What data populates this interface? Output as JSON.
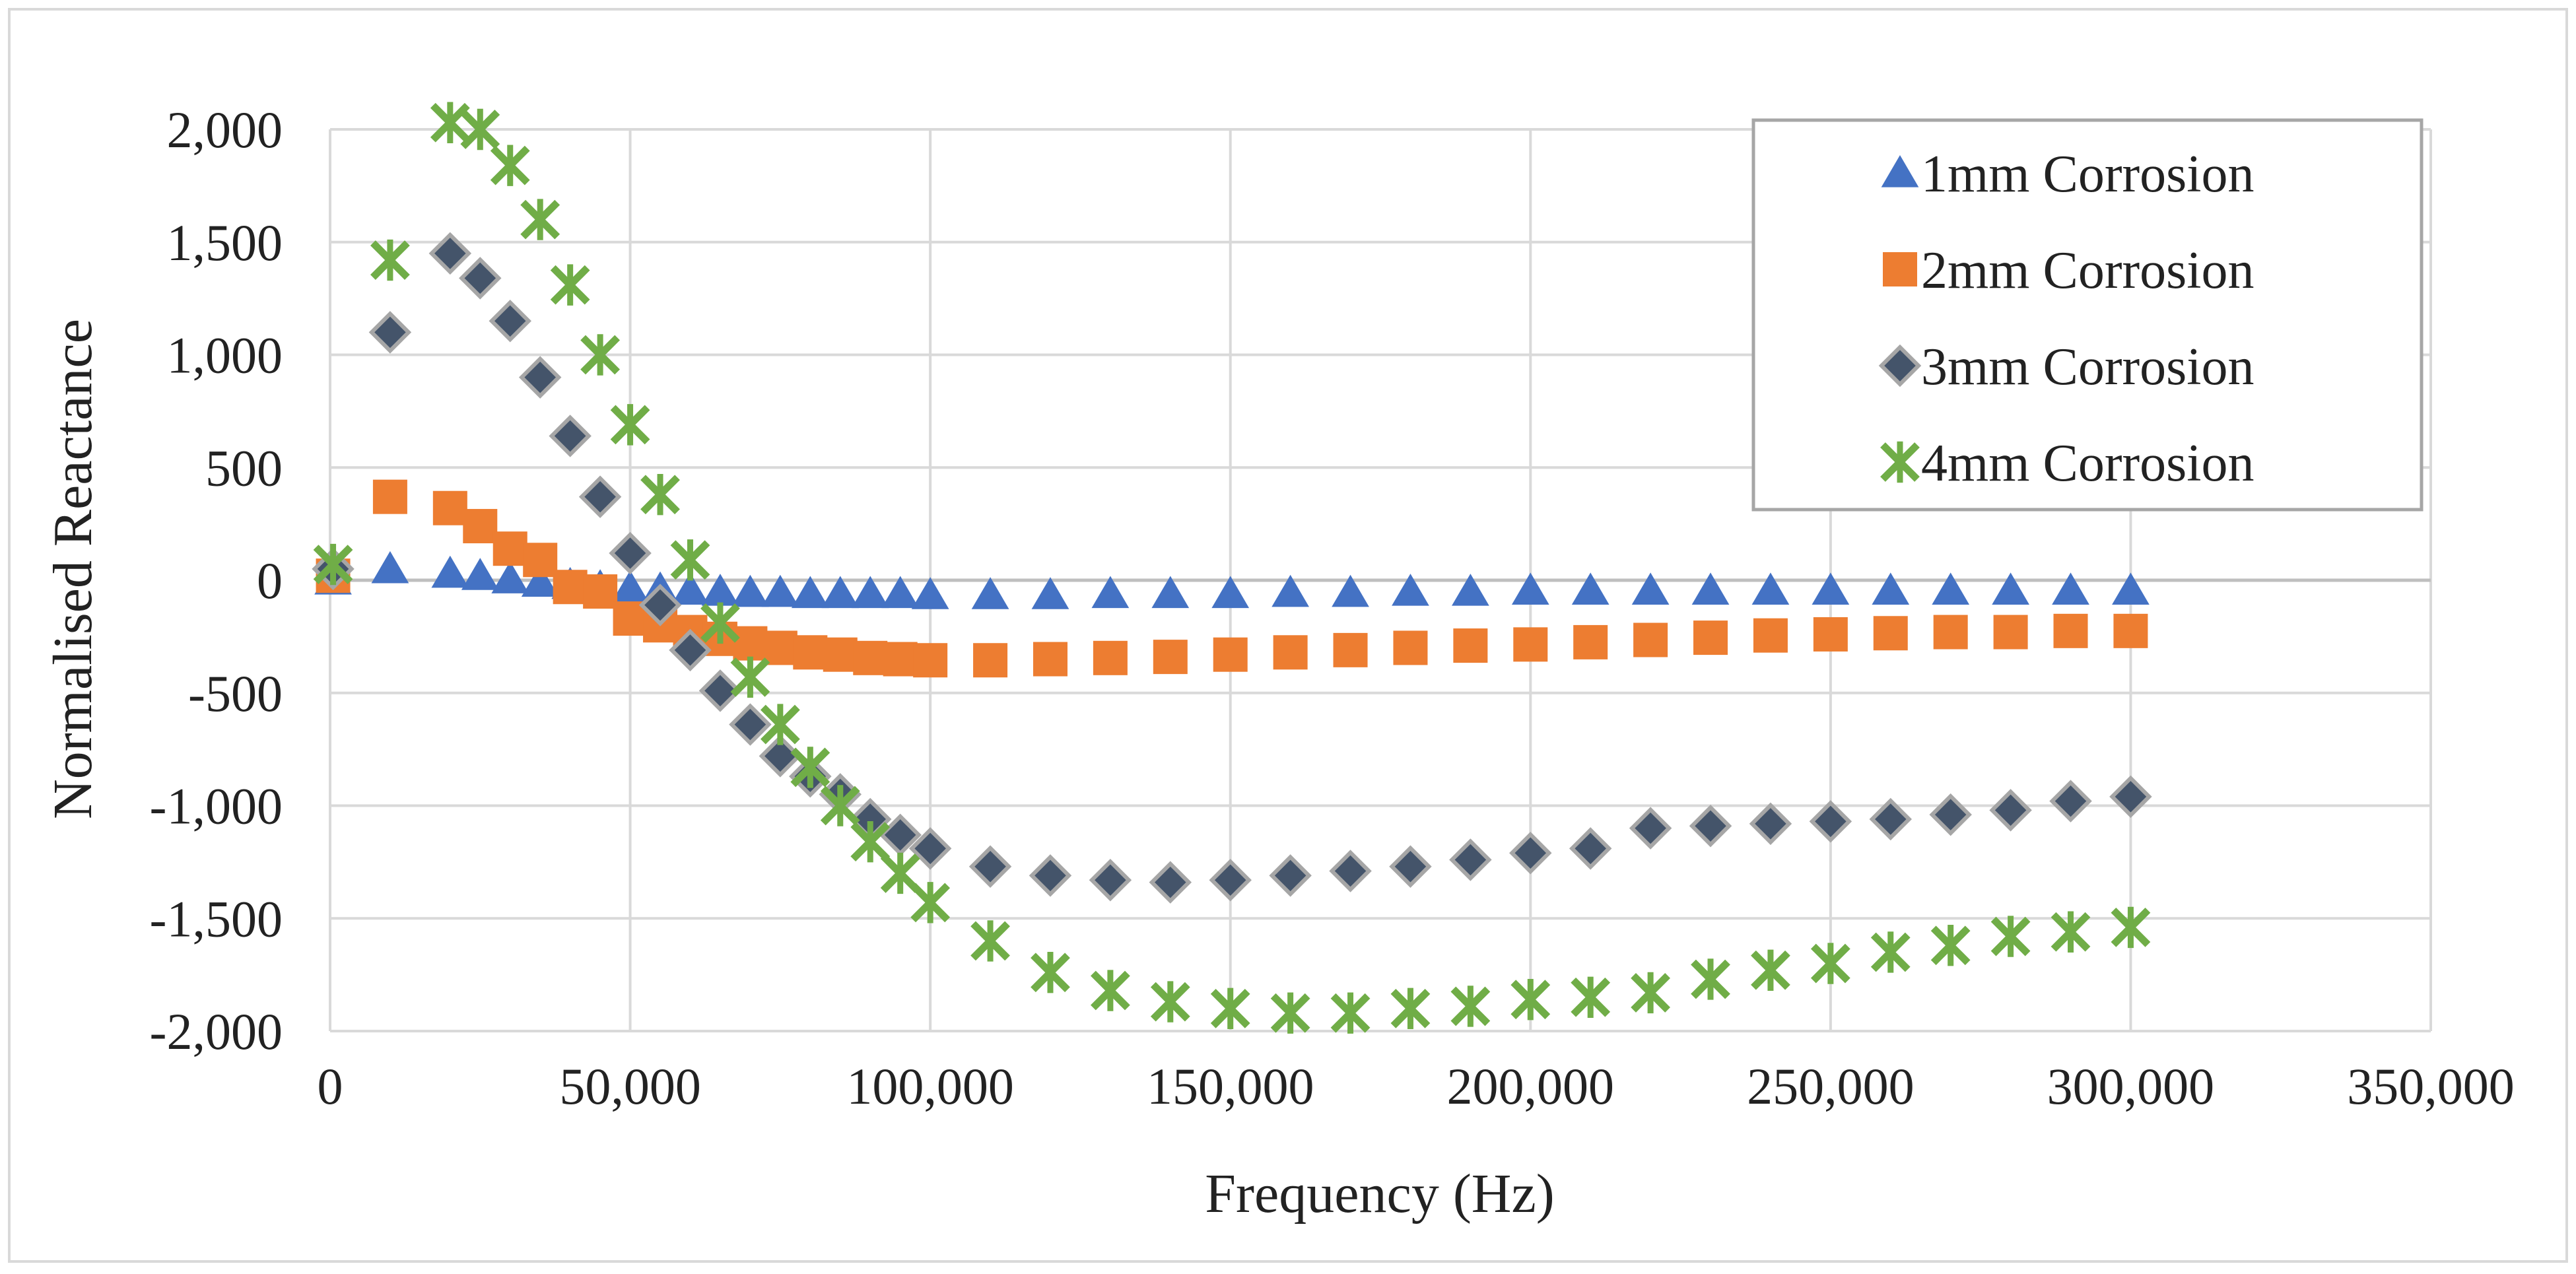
{
  "chart_data": {
    "type": "scatter",
    "title": "",
    "xlabel": "Frequency (Hz)",
    "ylabel": "Normalised Reactance",
    "xlim": [
      0,
      350000
    ],
    "ylim": [
      -2000,
      2000
    ],
    "x_ticks": [
      0,
      50000,
      100000,
      150000,
      200000,
      250000,
      300000,
      350000
    ],
    "y_ticks": [
      -2000,
      -1500,
      -1000,
      -500,
      0,
      500,
      1000,
      1500,
      2000
    ],
    "x_tick_labels": [
      "0",
      "50,000",
      "100,000",
      "150,000",
      "200,000",
      "250,000",
      "300,000",
      "350,000"
    ],
    "y_tick_labels": [
      "-2,000",
      "-1,500",
      "-1,000",
      "-500",
      "0",
      "500",
      "1,000",
      "1,500",
      "2,000"
    ],
    "grid": true,
    "legend_position": "top-right",
    "series": [
      {
        "name": "1mm Corrosion",
        "marker": "triangle",
        "color": "#4472C4",
        "x": [
          500,
          10000,
          20000,
          25000,
          30000,
          35000,
          40000,
          45000,
          50000,
          55000,
          60000,
          65000,
          70000,
          75000,
          80000,
          85000,
          90000,
          95000,
          100000,
          110000,
          120000,
          130000,
          140000,
          150000,
          160000,
          170000,
          180000,
          190000,
          200000,
          210000,
          220000,
          230000,
          240000,
          250000,
          260000,
          270000,
          280000,
          290000,
          300000
        ],
        "y": [
          0,
          50,
          30,
          20,
          5,
          -10,
          -20,
          -30,
          -35,
          -40,
          -45,
          -50,
          -55,
          -55,
          -60,
          -60,
          -60,
          -60,
          -65,
          -65,
          -65,
          -60,
          -60,
          -60,
          -55,
          -55,
          -50,
          -50,
          -45,
          -45,
          -45,
          -45,
          -45,
          -45,
          -45,
          -45,
          -45,
          -45,
          -45
        ]
      },
      {
        "name": "2mm Corrosion",
        "marker": "square",
        "color": "#ED7D31",
        "x": [
          500,
          10000,
          20000,
          25000,
          30000,
          35000,
          40000,
          45000,
          50000,
          55000,
          60000,
          65000,
          70000,
          75000,
          80000,
          85000,
          90000,
          95000,
          100000,
          110000,
          120000,
          130000,
          140000,
          150000,
          160000,
          170000,
          180000,
          190000,
          200000,
          210000,
          220000,
          230000,
          240000,
          250000,
          260000,
          270000,
          280000,
          290000,
          300000
        ],
        "y": [
          20,
          370,
          320,
          240,
          140,
          90,
          -30,
          -50,
          -170,
          -200,
          -230,
          -260,
          -280,
          -300,
          -320,
          -330,
          -345,
          -350,
          -355,
          -355,
          -350,
          -345,
          -340,
          -330,
          -320,
          -310,
          -300,
          -290,
          -285,
          -275,
          -265,
          -255,
          -245,
          -240,
          -235,
          -230,
          -230,
          -225,
          -225
        ]
      },
      {
        "name": "3mm Corrosion",
        "marker": "diamond",
        "color": "#44546A",
        "x": [
          500,
          10000,
          20000,
          25000,
          30000,
          35000,
          40000,
          45000,
          50000,
          55000,
          60000,
          65000,
          70000,
          75000,
          80000,
          85000,
          90000,
          95000,
          100000,
          110000,
          120000,
          130000,
          140000,
          150000,
          160000,
          170000,
          180000,
          190000,
          200000,
          210000,
          220000,
          230000,
          240000,
          250000,
          260000,
          270000,
          280000,
          290000,
          300000
        ],
        "y": [
          50,
          1100,
          1450,
          1340,
          1150,
          900,
          640,
          370,
          120,
          -110,
          -310,
          -490,
          -640,
          -780,
          -870,
          -950,
          -1060,
          -1130,
          -1190,
          -1270,
          -1310,
          -1330,
          -1340,
          -1330,
          -1310,
          -1290,
          -1270,
          -1240,
          -1210,
          -1190,
          -1100,
          -1090,
          -1080,
          -1070,
          -1060,
          -1040,
          -1020,
          -980,
          -960
        ]
      },
      {
        "name": "4mm Corrosion",
        "marker": "asterisk",
        "color": "#70AD47",
        "x": [
          500,
          10000,
          20000,
          25000,
          30000,
          35000,
          40000,
          45000,
          50000,
          55000,
          60000,
          65000,
          70000,
          75000,
          80000,
          85000,
          90000,
          95000,
          100000,
          110000,
          120000,
          130000,
          140000,
          150000,
          160000,
          170000,
          180000,
          190000,
          200000,
          210000,
          220000,
          230000,
          240000,
          250000,
          260000,
          270000,
          280000,
          290000,
          300000
        ],
        "y": [
          70,
          1420,
          2030,
          2000,
          1840,
          1600,
          1310,
          1000,
          690,
          380,
          90,
          -190,
          -430,
          -640,
          -830,
          -1000,
          -1160,
          -1300,
          -1430,
          -1600,
          -1740,
          -1820,
          -1870,
          -1900,
          -1920,
          -1920,
          -1900,
          -1890,
          -1860,
          -1850,
          -1830,
          -1770,
          -1730,
          -1700,
          -1650,
          -1620,
          -1580,
          -1560,
          -1540
        ]
      }
    ]
  }
}
